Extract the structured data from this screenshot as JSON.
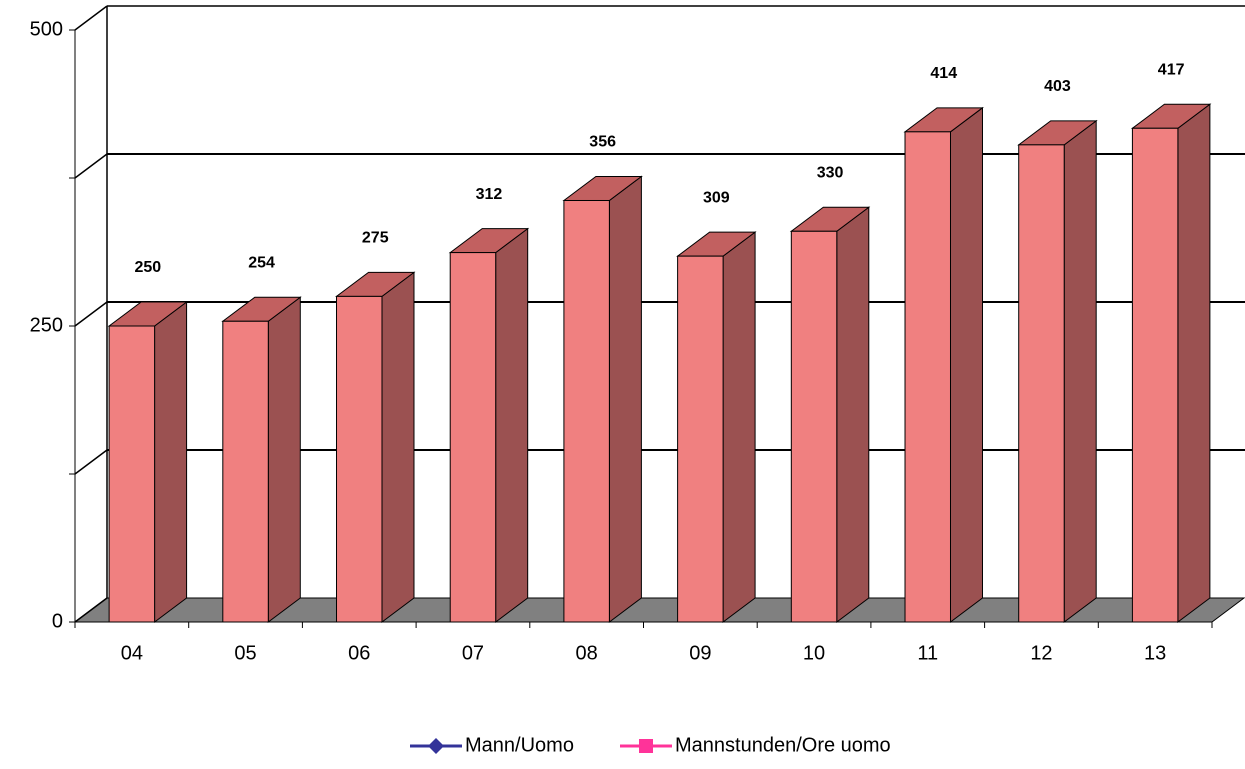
{
  "chart_data": {
    "type": "bar3d",
    "categories": [
      "04",
      "05",
      "06",
      "07",
      "08",
      "09",
      "10",
      "11",
      "12",
      "13"
    ],
    "values": [
      250,
      254,
      275,
      312,
      356,
      309,
      330,
      414,
      403,
      417
    ],
    "color": "#f08080",
    "side_color": "#9b5151",
    "top_color": "#c26060",
    "ylim": [
      0,
      500
    ],
    "yticks": [
      0,
      250,
      500
    ],
    "minor_yticks": [
      125,
      375
    ],
    "grid": true,
    "legend_position": "bottom",
    "legend": [
      {
        "name": "Mann/Uomo",
        "color": "#333399",
        "marker": "diamond"
      },
      {
        "name": "Mannstunden/Ore uomo",
        "color": "#ff3399",
        "marker": "square"
      }
    ]
  }
}
